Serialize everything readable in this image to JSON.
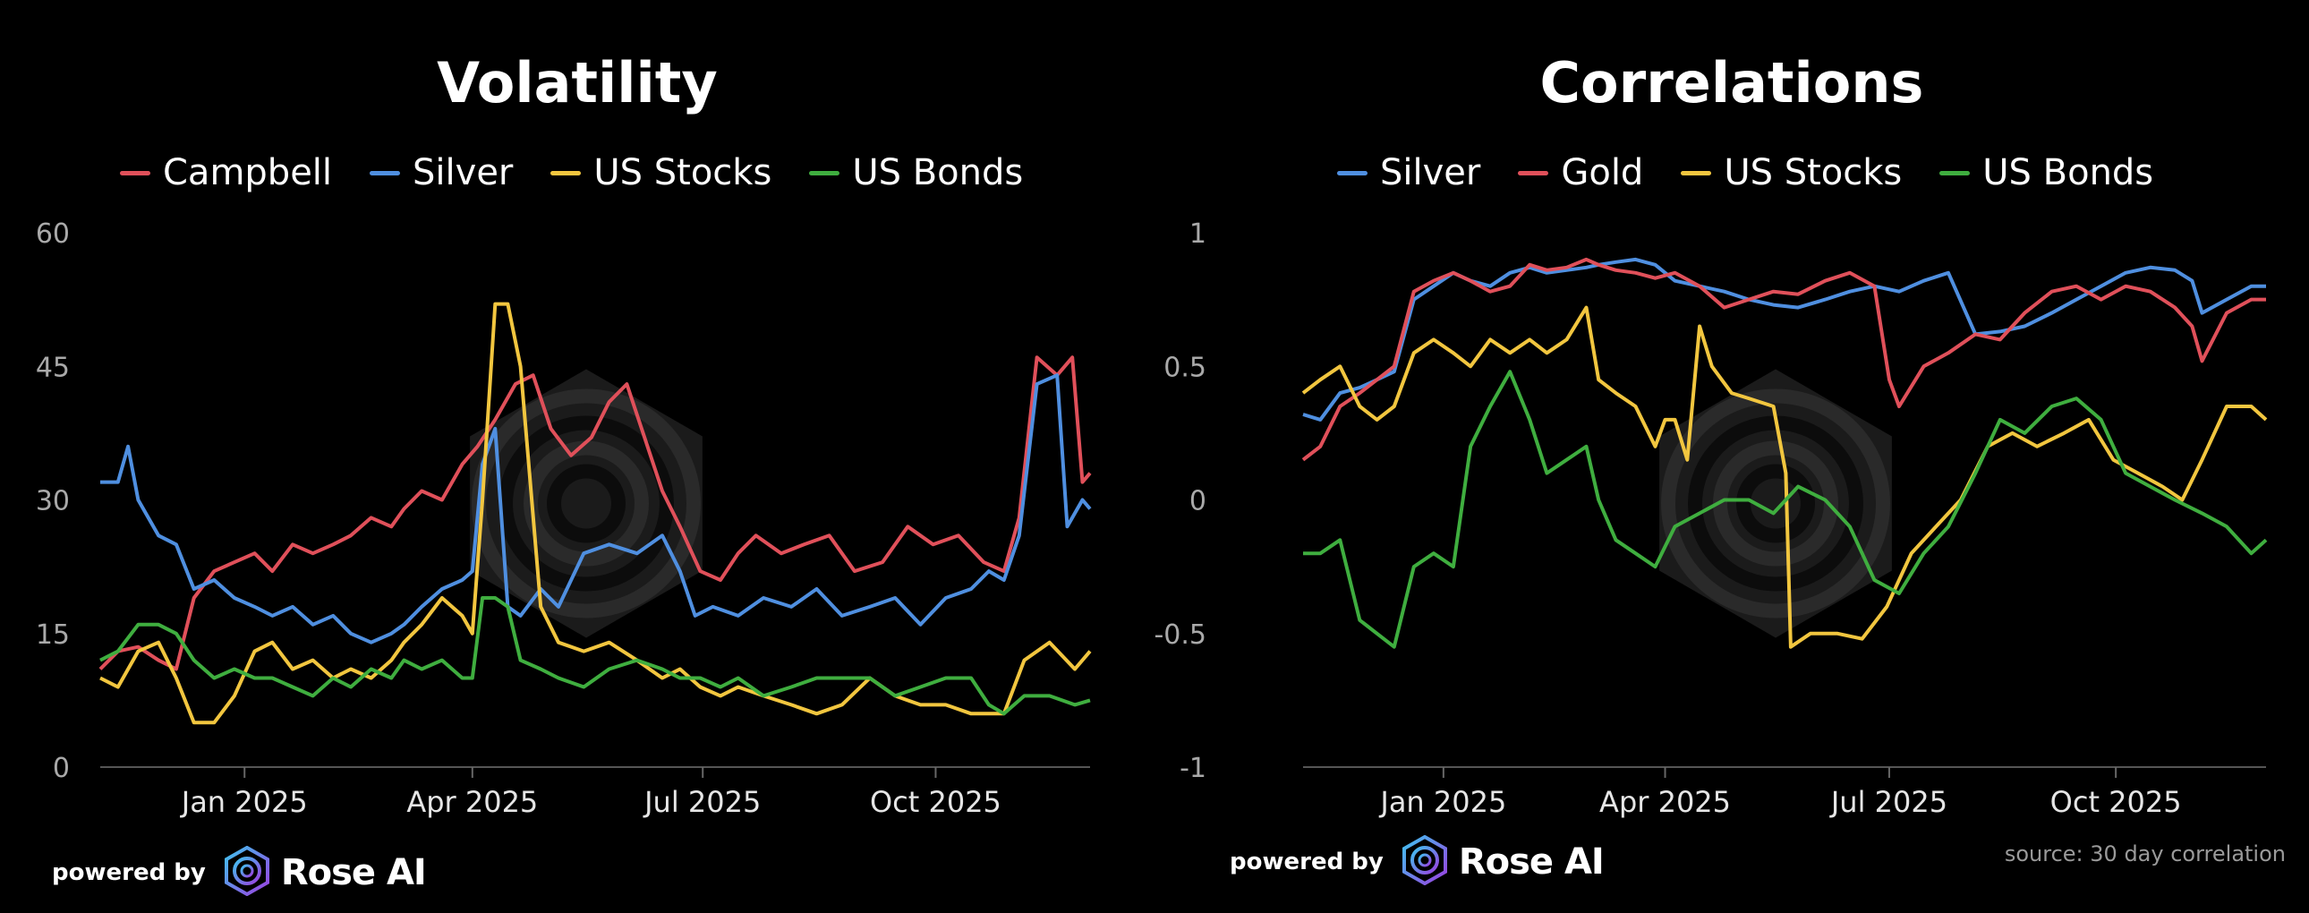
{
  "branding": {
    "prefix": "powered by",
    "name": "Rose AI"
  },
  "source_note": "source: 30 day correlation",
  "chart_data": [
    {
      "id": "volatility",
      "type": "line",
      "title": "Volatility",
      "xlabel": "",
      "ylabel": "",
      "xlim": [
        "2024-11-05",
        "2025-12-01"
      ],
      "ylim": [
        0,
        60
      ],
      "yticks": [
        0,
        15,
        30,
        45,
        60
      ],
      "ytick_labels": [
        "0",
        "15",
        "30",
        "45",
        "60"
      ],
      "xticks": [
        "2025-01-01",
        "2025-04-01",
        "2025-07-01",
        "2025-10-01"
      ],
      "xtick_labels": [
        "Jan 2025",
        "Apr 2025",
        "Jul 2025",
        "Oct 2025"
      ],
      "grid": false,
      "legend_position": "top",
      "series": [
        {
          "name": "Campbell",
          "color": "#e0505a",
          "x": [
            "2024-11-05",
            "2024-11-12",
            "2024-11-20",
            "2024-11-28",
            "2024-12-05",
            "2024-12-12",
            "2024-12-20",
            "2024-12-28",
            "2025-01-05",
            "2025-01-12",
            "2025-01-20",
            "2025-01-28",
            "2025-02-05",
            "2025-02-12",
            "2025-02-20",
            "2025-02-28",
            "2025-03-05",
            "2025-03-12",
            "2025-03-20",
            "2025-03-28",
            "2025-04-03",
            "2025-04-10",
            "2025-04-18",
            "2025-04-25",
            "2025-05-02",
            "2025-05-10",
            "2025-05-18",
            "2025-05-25",
            "2025-06-01",
            "2025-06-08",
            "2025-06-15",
            "2025-06-22",
            "2025-06-30",
            "2025-07-08",
            "2025-07-15",
            "2025-07-22",
            "2025-08-01",
            "2025-08-10",
            "2025-08-20",
            "2025-08-30",
            "2025-09-10",
            "2025-09-20",
            "2025-09-30",
            "2025-10-10",
            "2025-10-20",
            "2025-10-28",
            "2025-11-03",
            "2025-11-10",
            "2025-11-18",
            "2025-11-24",
            "2025-11-28",
            "2025-12-01"
          ],
          "y": [
            11,
            13,
            13.5,
            12,
            11,
            19,
            22,
            23,
            24,
            22,
            25,
            24,
            25,
            26,
            28,
            27,
            29,
            31,
            30,
            34,
            36,
            39,
            43,
            44,
            38,
            35,
            37,
            41,
            43,
            37,
            31,
            27,
            22,
            21,
            24,
            26,
            24,
            25,
            26,
            22,
            23,
            27,
            25,
            26,
            23,
            22,
            28,
            46,
            44,
            46,
            32,
            33
          ]
        },
        {
          "name": "Silver",
          "color": "#4f8fe0",
          "x": [
            "2024-11-05",
            "2024-11-12",
            "2024-11-16",
            "2024-11-20",
            "2024-11-28",
            "2024-12-05",
            "2024-12-12",
            "2024-12-20",
            "2024-12-28",
            "2025-01-05",
            "2025-01-12",
            "2025-01-20",
            "2025-01-28",
            "2025-02-05",
            "2025-02-12",
            "2025-02-20",
            "2025-02-28",
            "2025-03-05",
            "2025-03-12",
            "2025-03-20",
            "2025-03-28",
            "2025-04-01",
            "2025-04-05",
            "2025-04-10",
            "2025-04-15",
            "2025-04-20",
            "2025-04-28",
            "2025-05-05",
            "2025-05-15",
            "2025-05-25",
            "2025-06-05",
            "2025-06-15",
            "2025-06-22",
            "2025-06-28",
            "2025-07-05",
            "2025-07-15",
            "2025-07-25",
            "2025-08-05",
            "2025-08-15",
            "2025-08-25",
            "2025-09-05",
            "2025-09-15",
            "2025-09-25",
            "2025-10-05",
            "2025-10-15",
            "2025-10-22",
            "2025-10-28",
            "2025-11-03",
            "2025-11-10",
            "2025-11-18",
            "2025-11-22",
            "2025-11-28",
            "2025-12-01"
          ],
          "y": [
            32,
            32,
            36,
            30,
            26,
            25,
            20,
            21,
            19,
            18,
            17,
            18,
            16,
            17,
            15,
            14,
            15,
            16,
            18,
            20,
            21,
            22,
            34,
            38,
            18,
            17,
            20,
            18,
            24,
            25,
            24,
            26,
            22,
            17,
            18,
            17,
            19,
            18,
            20,
            17,
            18,
            19,
            16,
            19,
            20,
            22,
            21,
            26,
            43,
            44,
            27,
            30,
            29
          ]
        },
        {
          "name": "US Stocks",
          "color": "#f2c63f",
          "x": [
            "2024-11-05",
            "2024-11-12",
            "2024-11-20",
            "2024-11-28",
            "2024-12-05",
            "2024-12-12",
            "2024-12-20",
            "2024-12-28",
            "2025-01-05",
            "2025-01-12",
            "2025-01-20",
            "2025-01-28",
            "2025-02-05",
            "2025-02-12",
            "2025-02-20",
            "2025-02-28",
            "2025-03-05",
            "2025-03-12",
            "2025-03-20",
            "2025-03-28",
            "2025-04-01",
            "2025-04-05",
            "2025-04-10",
            "2025-04-15",
            "2025-04-20",
            "2025-04-28",
            "2025-05-05",
            "2025-05-15",
            "2025-05-25",
            "2025-06-05",
            "2025-06-15",
            "2025-06-22",
            "2025-06-30",
            "2025-07-08",
            "2025-07-15",
            "2025-07-25",
            "2025-08-05",
            "2025-08-15",
            "2025-08-25",
            "2025-09-05",
            "2025-09-15",
            "2025-09-25",
            "2025-10-05",
            "2025-10-15",
            "2025-10-22",
            "2025-10-28",
            "2025-11-05",
            "2025-11-15",
            "2025-11-25",
            "2025-12-01"
          ],
          "y": [
            10,
            9,
            13,
            14,
            10,
            5,
            5,
            8,
            13,
            14,
            11,
            12,
            10,
            11,
            10,
            12,
            14,
            16,
            19,
            17,
            15,
            30,
            52,
            52,
            45,
            18,
            14,
            13,
            14,
            12,
            10,
            11,
            9,
            8,
            9,
            8,
            7,
            6,
            7,
            10,
            8,
            7,
            7,
            6,
            6,
            6,
            12,
            14,
            11,
            13
          ]
        },
        {
          "name": "US Bonds",
          "color": "#3fae3f",
          "x": [
            "2024-11-05",
            "2024-11-12",
            "2024-11-20",
            "2024-11-28",
            "2024-12-05",
            "2024-12-12",
            "2024-12-20",
            "2024-12-28",
            "2025-01-05",
            "2025-01-12",
            "2025-01-20",
            "2025-01-28",
            "2025-02-05",
            "2025-02-12",
            "2025-02-20",
            "2025-02-28",
            "2025-03-05",
            "2025-03-12",
            "2025-03-20",
            "2025-03-28",
            "2025-04-01",
            "2025-04-05",
            "2025-04-10",
            "2025-04-15",
            "2025-04-20",
            "2025-04-28",
            "2025-05-05",
            "2025-05-15",
            "2025-05-25",
            "2025-06-05",
            "2025-06-15",
            "2025-06-22",
            "2025-06-30",
            "2025-07-08",
            "2025-07-15",
            "2025-07-25",
            "2025-08-05",
            "2025-08-15",
            "2025-08-25",
            "2025-09-05",
            "2025-09-15",
            "2025-09-25",
            "2025-10-05",
            "2025-10-15",
            "2025-10-22",
            "2025-10-28",
            "2025-11-05",
            "2025-11-15",
            "2025-11-25",
            "2025-12-01"
          ],
          "y": [
            12,
            13,
            16,
            16,
            15,
            12,
            10,
            11,
            10,
            10,
            9,
            8,
            10,
            9,
            11,
            10,
            12,
            11,
            12,
            10,
            10,
            19,
            19,
            18,
            12,
            11,
            10,
            9,
            11,
            12,
            11,
            10,
            10,
            9,
            10,
            8,
            9,
            10,
            10,
            10,
            8,
            9,
            10,
            10,
            7,
            6,
            8,
            8,
            7,
            7.5
          ]
        }
      ]
    },
    {
      "id": "correlations",
      "type": "line",
      "title": "Correlations",
      "xlabel": "",
      "ylabel": "",
      "xlim": [
        "2024-11-05",
        "2025-12-01"
      ],
      "ylim": [
        -1,
        1
      ],
      "yticks": [
        -1,
        -0.5,
        0,
        0.5,
        1
      ],
      "ytick_labels": [
        "-1",
        "-0.5",
        "0",
        "0.5",
        "1"
      ],
      "xticks": [
        "2025-01-01",
        "2025-04-01",
        "2025-07-01",
        "2025-10-01"
      ],
      "xtick_labels": [
        "Jan 2025",
        "Apr 2025",
        "Jul 2025",
        "Oct 2025"
      ],
      "grid": false,
      "legend_position": "top",
      "series": [
        {
          "name": "Silver",
          "color": "#4f8fe0",
          "x": [
            "2024-11-05",
            "2024-11-12",
            "2024-11-20",
            "2024-11-28",
            "2024-12-05",
            "2024-12-12",
            "2024-12-20",
            "2024-12-28",
            "2025-01-05",
            "2025-01-12",
            "2025-01-20",
            "2025-01-28",
            "2025-02-05",
            "2025-02-12",
            "2025-02-20",
            "2025-02-28",
            "2025-03-05",
            "2025-03-12",
            "2025-03-20",
            "2025-03-28",
            "2025-04-05",
            "2025-04-15",
            "2025-04-25",
            "2025-05-05",
            "2025-05-15",
            "2025-05-25",
            "2025-06-05",
            "2025-06-15",
            "2025-06-25",
            "2025-07-05",
            "2025-07-15",
            "2025-07-25",
            "2025-08-05",
            "2025-08-15",
            "2025-08-25",
            "2025-09-05",
            "2025-09-15",
            "2025-09-25",
            "2025-10-05",
            "2025-10-15",
            "2025-10-25",
            "2025-11-01",
            "2025-11-05",
            "2025-11-15",
            "2025-11-25",
            "2025-12-01"
          ],
          "y": [
            0.32,
            0.3,
            0.4,
            0.42,
            0.45,
            0.48,
            0.75,
            0.8,
            0.85,
            0.82,
            0.8,
            0.85,
            0.87,
            0.85,
            0.86,
            0.87,
            0.88,
            0.89,
            0.9,
            0.88,
            0.82,
            0.8,
            0.78,
            0.75,
            0.73,
            0.72,
            0.75,
            0.78,
            0.8,
            0.78,
            0.82,
            0.85,
            0.62,
            0.63,
            0.65,
            0.7,
            0.75,
            0.8,
            0.85,
            0.87,
            0.86,
            0.82,
            0.7,
            0.75,
            0.8,
            0.8
          ]
        },
        {
          "name": "Gold",
          "color": "#e0505a",
          "x": [
            "2024-11-05",
            "2024-11-12",
            "2024-11-20",
            "2024-11-28",
            "2024-12-05",
            "2024-12-12",
            "2024-12-20",
            "2024-12-28",
            "2025-01-05",
            "2025-01-12",
            "2025-01-20",
            "2025-01-28",
            "2025-02-05",
            "2025-02-12",
            "2025-02-20",
            "2025-02-28",
            "2025-03-05",
            "2025-03-12",
            "2025-03-20",
            "2025-03-28",
            "2025-04-05",
            "2025-04-15",
            "2025-04-25",
            "2025-05-05",
            "2025-05-15",
            "2025-05-25",
            "2025-06-05",
            "2025-06-15",
            "2025-06-25",
            "2025-07-01",
            "2025-07-05",
            "2025-07-15",
            "2025-07-25",
            "2025-08-05",
            "2025-08-15",
            "2025-08-25",
            "2025-09-05",
            "2025-09-15",
            "2025-09-25",
            "2025-10-05",
            "2025-10-15",
            "2025-10-25",
            "2025-11-01",
            "2025-11-05",
            "2025-11-15",
            "2025-11-25",
            "2025-12-01"
          ],
          "y": [
            0.15,
            0.2,
            0.35,
            0.4,
            0.45,
            0.5,
            0.78,
            0.82,
            0.85,
            0.82,
            0.78,
            0.8,
            0.88,
            0.86,
            0.87,
            0.9,
            0.88,
            0.86,
            0.85,
            0.83,
            0.85,
            0.8,
            0.72,
            0.75,
            0.78,
            0.77,
            0.82,
            0.85,
            0.8,
            0.45,
            0.35,
            0.5,
            0.55,
            0.62,
            0.6,
            0.7,
            0.78,
            0.8,
            0.75,
            0.8,
            0.78,
            0.72,
            0.65,
            0.52,
            0.7,
            0.75,
            0.75
          ]
        },
        {
          "name": "US Stocks",
          "color": "#f2c63f",
          "x": [
            "2024-11-05",
            "2024-11-12",
            "2024-11-20",
            "2024-11-28",
            "2024-12-05",
            "2024-12-12",
            "2024-12-20",
            "2024-12-28",
            "2025-01-05",
            "2025-01-12",
            "2025-01-20",
            "2025-01-28",
            "2025-02-05",
            "2025-02-12",
            "2025-02-20",
            "2025-02-28",
            "2025-03-05",
            "2025-03-12",
            "2025-03-20",
            "2025-03-28",
            "2025-04-01",
            "2025-04-05",
            "2025-04-10",
            "2025-04-15",
            "2025-04-20",
            "2025-04-28",
            "2025-05-05",
            "2025-05-15",
            "2025-05-20",
            "2025-05-22",
            "2025-05-30",
            "2025-06-10",
            "2025-06-20",
            "2025-06-30",
            "2025-07-10",
            "2025-07-20",
            "2025-07-30",
            "2025-08-10",
            "2025-08-20",
            "2025-08-30",
            "2025-09-10",
            "2025-09-20",
            "2025-09-30",
            "2025-10-10",
            "2025-10-20",
            "2025-10-28",
            "2025-11-05",
            "2025-11-15",
            "2025-11-25",
            "2025-12-01"
          ],
          "y": [
            0.4,
            0.45,
            0.5,
            0.35,
            0.3,
            0.35,
            0.55,
            0.6,
            0.55,
            0.5,
            0.6,
            0.55,
            0.6,
            0.55,
            0.6,
            0.72,
            0.45,
            0.4,
            0.35,
            0.2,
            0.3,
            0.3,
            0.15,
            0.65,
            0.5,
            0.4,
            0.38,
            0.35,
            0.1,
            -0.55,
            -0.5,
            -0.5,
            -0.52,
            -0.4,
            -0.2,
            -0.1,
            0,
            0.2,
            0.25,
            0.2,
            0.25,
            0.3,
            0.15,
            0.1,
            0.05,
            0,
            0.15,
            0.35,
            0.35,
            0.3
          ]
        },
        {
          "name": "US Bonds",
          "color": "#3fae3f",
          "x": [
            "2024-11-05",
            "2024-11-12",
            "2024-11-20",
            "2024-11-28",
            "2024-12-05",
            "2024-12-12",
            "2024-12-20",
            "2024-12-28",
            "2025-01-05",
            "2025-01-12",
            "2025-01-20",
            "2025-01-28",
            "2025-02-05",
            "2025-02-12",
            "2025-02-20",
            "2025-02-28",
            "2025-03-05",
            "2025-03-12",
            "2025-03-20",
            "2025-03-28",
            "2025-04-05",
            "2025-04-15",
            "2025-04-25",
            "2025-05-05",
            "2025-05-15",
            "2025-05-25",
            "2025-06-05",
            "2025-06-15",
            "2025-06-25",
            "2025-07-05",
            "2025-07-15",
            "2025-07-25",
            "2025-08-05",
            "2025-08-15",
            "2025-08-25",
            "2025-09-05",
            "2025-09-15",
            "2025-09-25",
            "2025-10-05",
            "2025-10-15",
            "2025-10-25",
            "2025-11-05",
            "2025-11-15",
            "2025-11-25",
            "2025-12-01"
          ],
          "y": [
            -0.2,
            -0.2,
            -0.15,
            -0.45,
            -0.5,
            -0.55,
            -0.25,
            -0.2,
            -0.25,
            0.2,
            0.35,
            0.48,
            0.3,
            0.1,
            0.15,
            0.2,
            0,
            -0.15,
            -0.2,
            -0.25,
            -0.1,
            -0.05,
            0,
            0,
            -0.05,
            0.05,
            0,
            -0.1,
            -0.3,
            -0.35,
            -0.2,
            -0.1,
            0.1,
            0.3,
            0.25,
            0.35,
            0.38,
            0.3,
            0.1,
            0.05,
            0,
            -0.05,
            -0.1,
            -0.2,
            -0.15
          ]
        }
      ]
    }
  ]
}
